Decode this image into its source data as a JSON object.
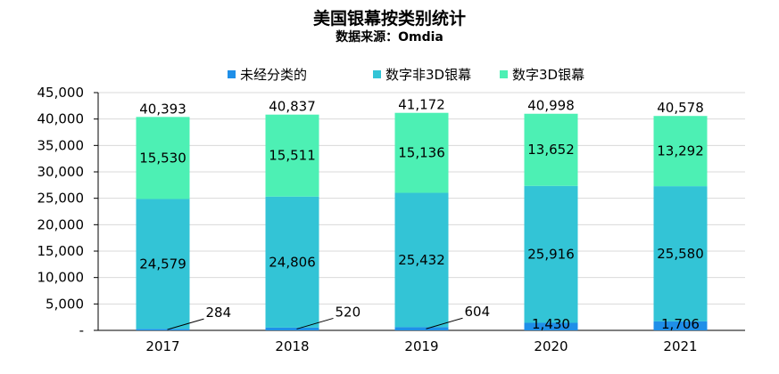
{
  "chart_data": {
    "type": "bar",
    "stacked": true,
    "title": "美国银幕按类别统计",
    "subtitle": "数据来源：Omdia",
    "categories": [
      "2017",
      "2018",
      "2019",
      "2020",
      "2021"
    ],
    "series": [
      {
        "name": "未经分类的",
        "color": "#1f8fe8",
        "values": [
          284,
          520,
          604,
          1430,
          1706
        ],
        "labels": [
          "284",
          "520",
          "604",
          "1,430",
          "1,706"
        ]
      },
      {
        "name": "数字非3D银幕",
        "color": "#33c4d6",
        "values": [
          24579,
          24806,
          25432,
          25916,
          25580
        ],
        "labels": [
          "24,579",
          "24,806",
          "25,432",
          "25,916",
          "25,580"
        ]
      },
      {
        "name": "数字3D银幕",
        "color": "#4df0b4",
        "values": [
          15530,
          15511,
          15136,
          13652,
          13292
        ],
        "labels": [
          "15,530",
          "15,511",
          "15,136",
          "13,652",
          "13,292"
        ]
      }
    ],
    "totals": [
      40393,
      40837,
      41172,
      40998,
      40578
    ],
    "total_labels": [
      "40,393",
      "40,837",
      "41,172",
      "40,998",
      "40,578"
    ],
    "ylim": [
      0,
      45000
    ],
    "yticks": [
      0,
      5000,
      10000,
      15000,
      20000,
      25000,
      30000,
      35000,
      40000,
      45000
    ],
    "ytick_labels": [
      "-",
      "5,000",
      "10,000",
      "15,000",
      "20,000",
      "25,000",
      "30,000",
      "35,000",
      "40,000",
      "45,000"
    ],
    "grid": true,
    "legend_position": "top",
    "xlabel": "",
    "ylabel": ""
  }
}
